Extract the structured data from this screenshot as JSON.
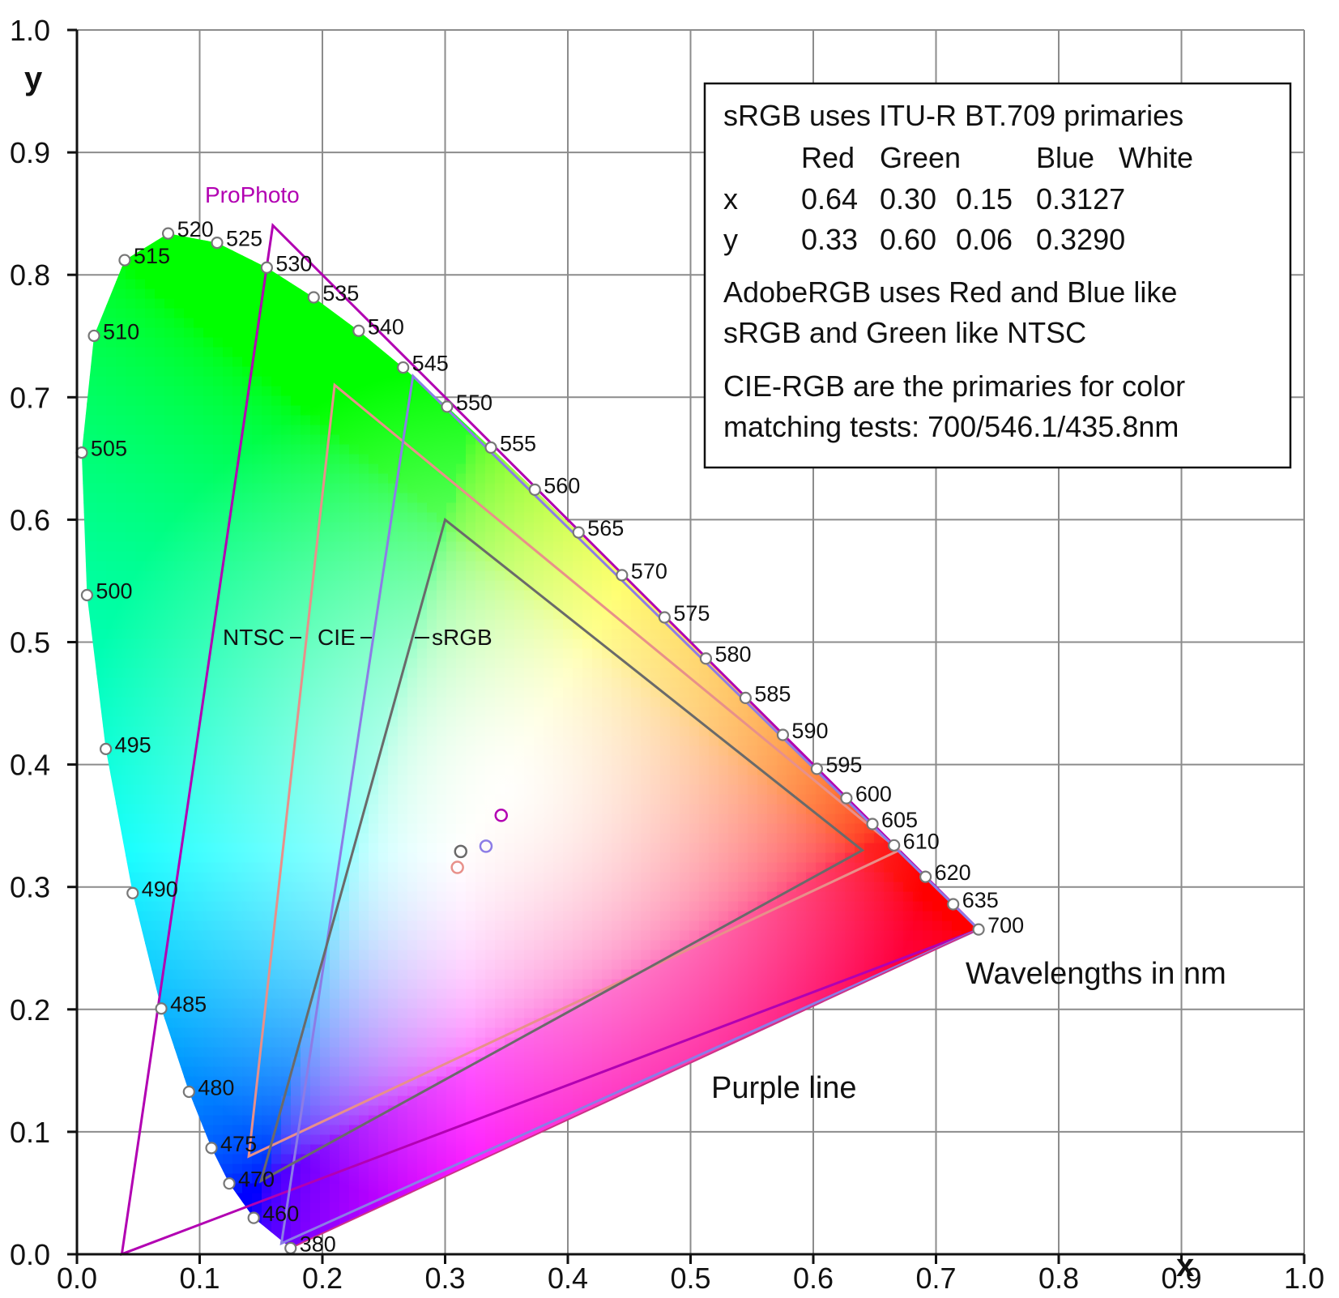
{
  "chart_data": {
    "type": "chromaticity-diagram",
    "xlabel": "x",
    "ylabel": "y",
    "xlim": [
      0,
      1
    ],
    "ylim": [
      0,
      1
    ],
    "x_ticks": [
      "0.0",
      "0.1",
      "0.2",
      "0.3",
      "0.4",
      "0.5",
      "0.6",
      "0.7",
      "0.8",
      "0.9",
      "1.0"
    ],
    "y_ticks": [
      "0.0",
      "0.1",
      "0.2",
      "0.3",
      "0.4",
      "0.5",
      "0.6",
      "0.7",
      "0.8",
      "0.9",
      "1.0"
    ],
    "grid": true,
    "spectral_locus": [
      {
        "nm": "380",
        "x": 0.1741,
        "y": 0.005
      },
      {
        "nm": "460",
        "x": 0.144,
        "y": 0.0297
      },
      {
        "nm": "470",
        "x": 0.1241,
        "y": 0.0578
      },
      {
        "nm": "475",
        "x": 0.1096,
        "y": 0.0868
      },
      {
        "nm": "480",
        "x": 0.0913,
        "y": 0.1327
      },
      {
        "nm": "485",
        "x": 0.0687,
        "y": 0.2007
      },
      {
        "nm": "490",
        "x": 0.0454,
        "y": 0.295
      },
      {
        "nm": "495",
        "x": 0.0235,
        "y": 0.4127
      },
      {
        "nm": "500",
        "x": 0.0082,
        "y": 0.5384
      },
      {
        "nm": "505",
        "x": 0.0039,
        "y": 0.6548
      },
      {
        "nm": "510",
        "x": 0.0139,
        "y": 0.7502
      },
      {
        "nm": "515",
        "x": 0.0389,
        "y": 0.812
      },
      {
        "nm": "520",
        "x": 0.0743,
        "y": 0.8338
      },
      {
        "nm": "525",
        "x": 0.1142,
        "y": 0.8262
      },
      {
        "nm": "530",
        "x": 0.1547,
        "y": 0.8059
      },
      {
        "nm": "535",
        "x": 0.1929,
        "y": 0.7816
      },
      {
        "nm": "540",
        "x": 0.2296,
        "y": 0.7543
      },
      {
        "nm": "545",
        "x": 0.2658,
        "y": 0.7243
      },
      {
        "nm": "550",
        "x": 0.3016,
        "y": 0.6923
      },
      {
        "nm": "555",
        "x": 0.3373,
        "y": 0.6589
      },
      {
        "nm": "560",
        "x": 0.3731,
        "y": 0.6245
      },
      {
        "nm": "565",
        "x": 0.4087,
        "y": 0.5896
      },
      {
        "nm": "570",
        "x": 0.4441,
        "y": 0.5547
      },
      {
        "nm": "575",
        "x": 0.4788,
        "y": 0.5202
      },
      {
        "nm": "580",
        "x": 0.5125,
        "y": 0.4866
      },
      {
        "nm": "585",
        "x": 0.5448,
        "y": 0.4544
      },
      {
        "nm": "590",
        "x": 0.5752,
        "y": 0.4242
      },
      {
        "nm": "595",
        "x": 0.6029,
        "y": 0.3965
      },
      {
        "nm": "600",
        "x": 0.627,
        "y": 0.3725
      },
      {
        "nm": "605",
        "x": 0.6482,
        "y": 0.3514
      },
      {
        "nm": "610",
        "x": 0.6658,
        "y": 0.334
      },
      {
        "nm": "620",
        "x": 0.6915,
        "y": 0.3083
      },
      {
        "nm": "635",
        "x": 0.714,
        "y": 0.2859
      },
      {
        "nm": "700",
        "x": 0.7347,
        "y": 0.2653
      }
    ],
    "gamuts": [
      {
        "key": "prophoto",
        "name": "ProPhoto",
        "color": "#b200b2",
        "points": [
          [
            0.7347,
            0.2653
          ],
          [
            0.1596,
            0.8404
          ],
          [
            0.0366,
            0.0001
          ]
        ],
        "white": [
          0.3457,
          0.3585
        ]
      },
      {
        "key": "ntsc",
        "name": "NTSC",
        "color": "#e8908a",
        "points": [
          [
            0.67,
            0.33
          ],
          [
            0.21,
            0.71
          ],
          [
            0.14,
            0.08
          ]
        ],
        "white": [
          0.31,
          0.316
        ]
      },
      {
        "key": "cie",
        "name": "CIE",
        "color": "#8c7ce6",
        "points": [
          [
            0.7347,
            0.2653
          ],
          [
            0.2738,
            0.7174
          ],
          [
            0.1666,
            0.0089
          ]
        ],
        "white": [
          0.3333,
          0.3333
        ]
      },
      {
        "key": "srgb",
        "name": "sRGB",
        "color": "#6a6a6a",
        "points": [
          [
            0.64,
            0.33
          ],
          [
            0.3,
            0.6
          ],
          [
            0.15,
            0.06
          ]
        ],
        "white": [
          0.3127,
          0.329
        ]
      }
    ]
  },
  "labels": {
    "prophoto": "ProPhoto",
    "ntsc": "NTSC",
    "cie": "CIE",
    "srgb": "sRGB",
    "wavelengths": "Wavelengths in nm",
    "purple_line": "Purple line"
  },
  "legend": {
    "line1": "sRGB uses ITU-R BT.709 primaries",
    "header": {
      "red": "Red",
      "green": "Green",
      "blue": "Blue",
      "white": "White"
    },
    "row_x": {
      "label": "x",
      "red": "0.64",
      "green": "0.30",
      "blue": "0.15",
      "white": "0.3127"
    },
    "row_y": {
      "label": "y",
      "red": "0.33",
      "green": "0.60",
      "blue": "0.06",
      "white": "0.3290"
    },
    "adobe1": "AdobeRGB uses Red and Blue like",
    "adobe2": "sRGB and Green like NTSC",
    "cie1": "CIE-RGB are the primaries for color",
    "cie2": "matching tests: 700/546.1/435.8nm"
  },
  "colors": {
    "grid": "#8c8c8c",
    "axis": "#111111"
  }
}
